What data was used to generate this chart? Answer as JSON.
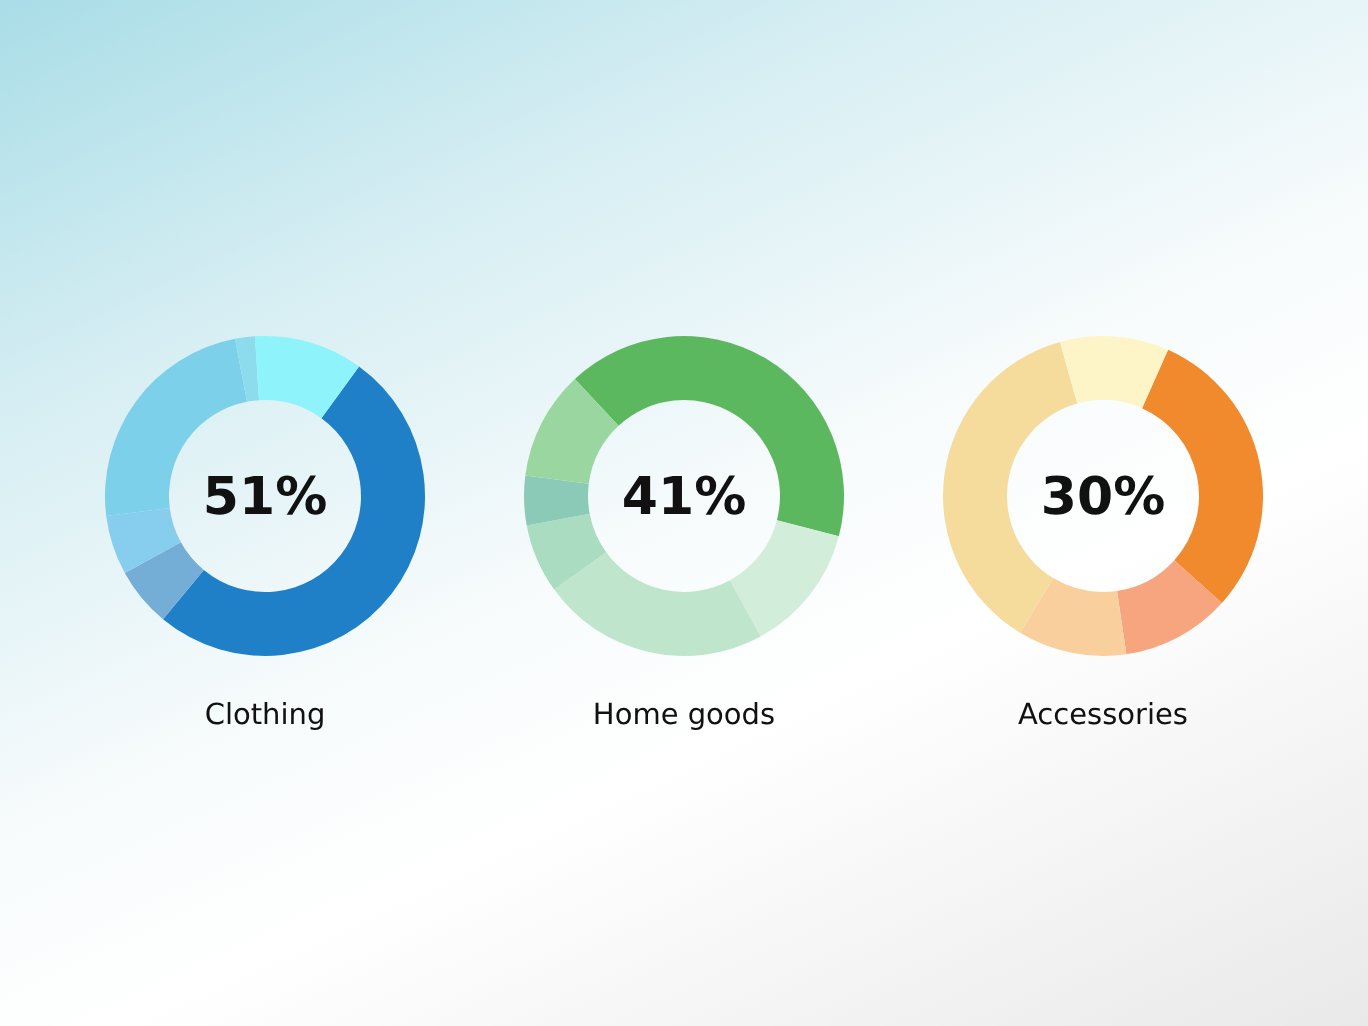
{
  "chart_data": [
    {
      "type": "donut",
      "title": "Clothing",
      "categories": [
        null,
        null,
        null,
        null,
        null,
        null
      ],
      "values": [
        51,
        6,
        6,
        24,
        2,
        11
      ],
      "colors": [
        "#1f80c8",
        "#74aed6",
        "#86cdee",
        "#7dd0ea",
        "#8ddcee",
        "#8ff3fb"
      ],
      "annotations": [
        "51%"
      ]
    },
    {
      "type": "donut",
      "title": "Home goods",
      "categories": [
        null,
        null,
        null,
        null,
        null,
        null
      ],
      "values": [
        41,
        13,
        23,
        7,
        5,
        11
      ],
      "colors": [
        "#5cb85f",
        "#d2eedb",
        "#bfe6cd",
        "#a9dcc0",
        "#8ccab8",
        "#9ad6a0"
      ],
      "annotations": [
        "41%"
      ]
    },
    {
      "type": "donut",
      "title": "Accessories",
      "categories": [
        null,
        null,
        null,
        null,
        null
      ],
      "values": [
        30,
        11,
        11,
        37,
        11
      ],
      "colors": [
        "#f08a2c",
        "#f6a57f",
        "#f9cf9e",
        "#f5dc9c",
        "#fdf5c8"
      ],
      "annotations": [
        "30%"
      ]
    }
  ]
}
